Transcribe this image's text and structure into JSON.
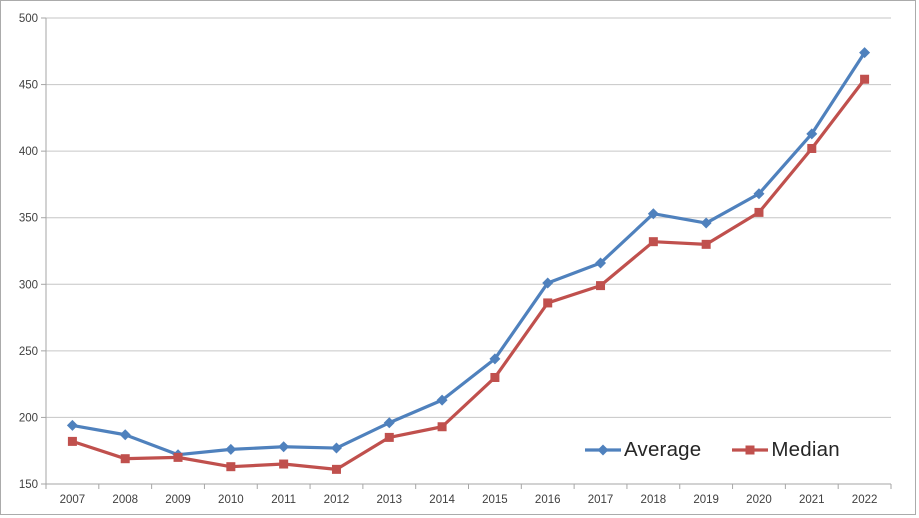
{
  "style": {
    "background": "#ffffff",
    "frame_border_color": "#ababab",
    "grid_color": "#c6c6c6",
    "axis_color": "#a6a6a6",
    "tick_label_color": "#404040",
    "legend_text_color": "#262626"
  },
  "chart_data": {
    "type": "line",
    "title": "",
    "xlabel": "",
    "ylabel": "",
    "categories": [
      "2007",
      "2008",
      "2009",
      "2010",
      "2011",
      "2012",
      "2013",
      "2014",
      "2015",
      "2016",
      "2017",
      "2018",
      "2019",
      "2020",
      "2021",
      "2022"
    ],
    "series": [
      {
        "name": "Average",
        "color": "#4F81BD",
        "marker": "diamond",
        "values": [
          194,
          187,
          172,
          176,
          178,
          177,
          196,
          213,
          244,
          301,
          316,
          353,
          346,
          368,
          413,
          474
        ]
      },
      {
        "name": "Median",
        "color": "#C0504D",
        "marker": "square",
        "values": [
          182,
          169,
          170,
          163,
          165,
          161,
          185,
          193,
          230,
          286,
          299,
          332,
          330,
          354,
          402,
          454
        ]
      }
    ],
    "ylim": [
      150,
      500
    ],
    "yticks": [
      150,
      200,
      250,
      300,
      350,
      400,
      450,
      500
    ],
    "grid": "horizontal",
    "legend_position": "inside-bottom-right"
  }
}
